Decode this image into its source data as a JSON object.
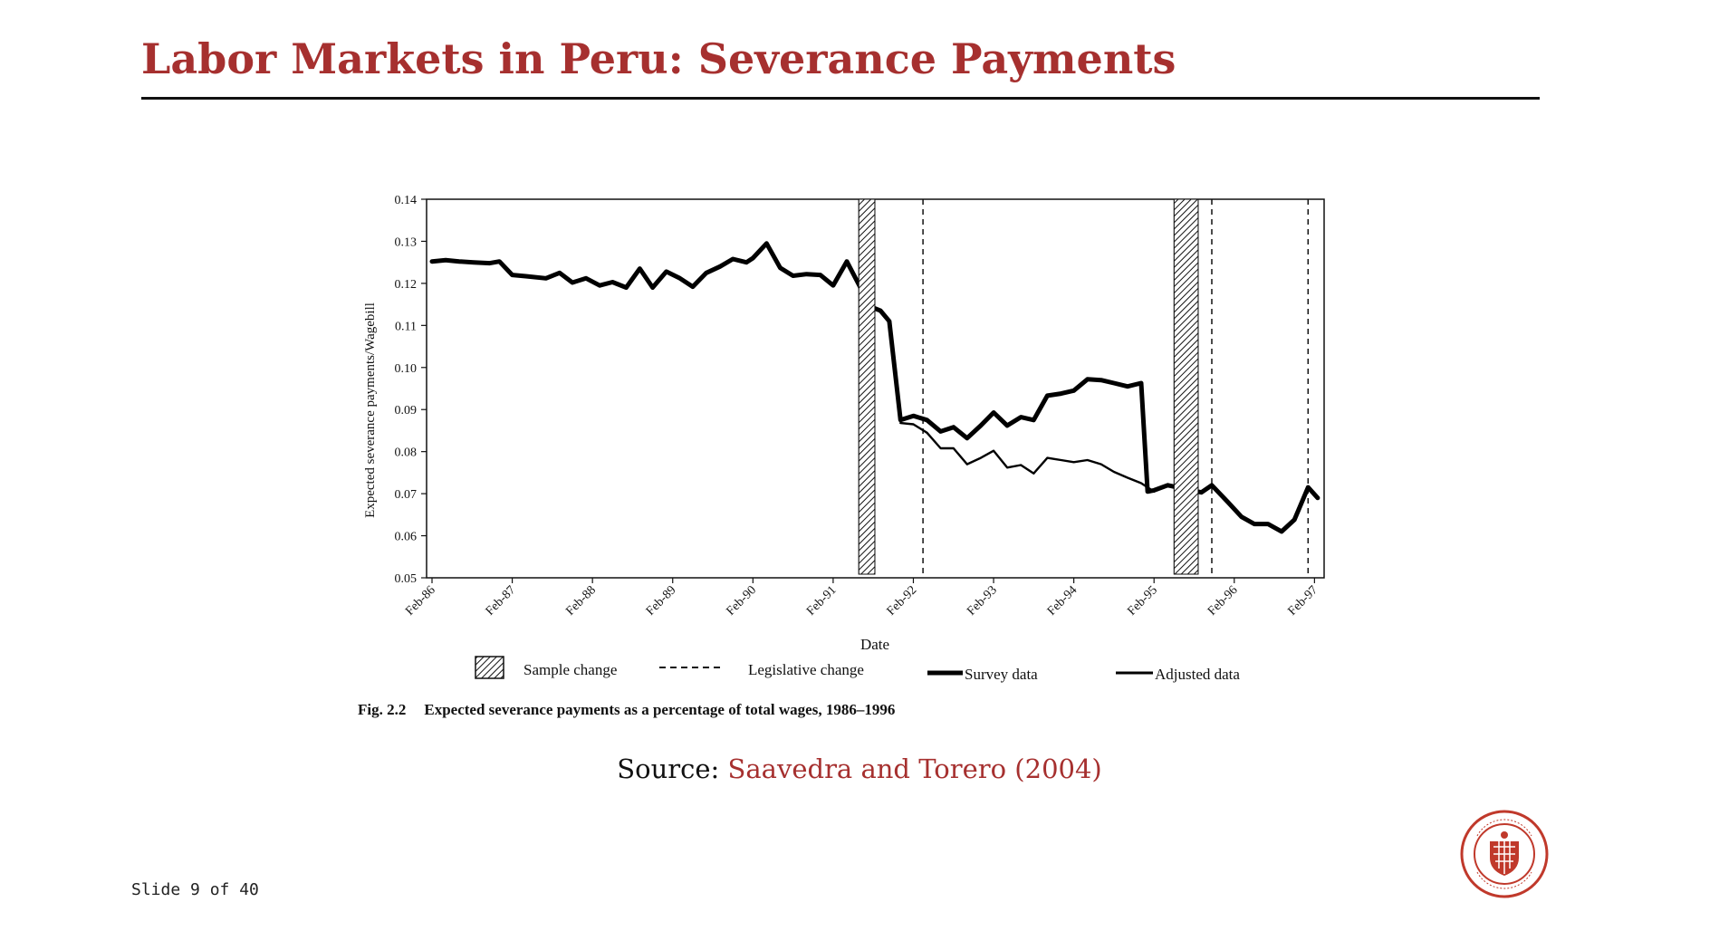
{
  "slide": {
    "title": "Labor Markets in Peru: Severance Payments",
    "source_label": "Source:",
    "source_ref": "Saavedra and Torero (2004)",
    "counter": "Slide 9 of 40",
    "accent_color": "#A6302F"
  },
  "figure": {
    "caption_number": "Fig. 2.2",
    "caption_text": "Expected severance payments as a percentage of total wages, 1986–1996"
  },
  "chart_data": {
    "type": "line",
    "title": "",
    "xlabel": "Date",
    "ylabel": "Expected severance payments/Wagebill",
    "ylim": [
      0.05,
      0.14
    ],
    "yticks": [
      "0.14",
      "0.13",
      "0.12",
      "0.11",
      "0.10",
      "0.09",
      "0.08",
      "0.07",
      "0.06",
      "0.05"
    ],
    "xlim": [
      1986.0,
      1997.2
    ],
    "xticks": [
      "Feb-86",
      "Feb-87",
      "Feb-88",
      "Feb-89",
      "Feb-90",
      "Feb-91",
      "Feb-92",
      "Feb-93",
      "Feb-94",
      "Feb-95",
      "Feb-96",
      "Feb-97"
    ],
    "grid": false,
    "legend_position": "bottom",
    "legend": [
      {
        "name": "Sample change",
        "style": "hatched"
      },
      {
        "name": "Legislative change",
        "style": "dashed"
      },
      {
        "name": "Survey data",
        "style": "thick"
      },
      {
        "name": "Adjusted data",
        "style": "thin"
      }
    ],
    "sample_change_periods": [
      [
        1991.4,
        1991.6
      ],
      [
        1995.33,
        1995.63
      ]
    ],
    "legislative_changes": [
      1992.2,
      1995.8,
      1997.0
    ],
    "series": [
      {
        "name": "Survey data",
        "style": "thick",
        "x": [
          1986.08,
          1986.25,
          1986.42,
          1986.6,
          1986.8,
          1986.92,
          1987.08,
          1987.25,
          1987.5,
          1987.67,
          1987.83,
          1988.0,
          1988.17,
          1988.33,
          1988.5,
          1988.67,
          1988.83,
          1989.0,
          1989.17,
          1989.33,
          1989.5,
          1989.67,
          1989.83,
          1990.0,
          1990.08,
          1990.25,
          1990.42,
          1990.58,
          1990.75,
          1990.92,
          1991.08,
          1991.25,
          1991.42,
          1991.58,
          1991.67,
          1991.78,
          1991.92,
          1992.08,
          1992.25,
          1992.42,
          1992.58,
          1992.75,
          1992.92,
          1993.08,
          1993.25,
          1993.42,
          1993.58,
          1993.75,
          1993.92,
          1994.08,
          1994.25,
          1994.42,
          1994.58,
          1994.75,
          1994.92,
          1995.0,
          1995.08,
          1995.25,
          1995.67,
          1995.8,
          1996.0,
          1996.17,
          1996.33,
          1996.5,
          1996.67,
          1996.83,
          1997.0,
          1997.12
        ],
        "y": [
          0.1252,
          0.1255,
          0.1252,
          0.125,
          0.1248,
          0.1252,
          0.122,
          0.1217,
          0.1212,
          0.1225,
          0.1202,
          0.1212,
          0.1195,
          0.1203,
          0.119,
          0.1235,
          0.119,
          0.1228,
          0.1212,
          0.1192,
          0.1225,
          0.124,
          0.1258,
          0.125,
          0.126,
          0.1295,
          0.1237,
          0.1218,
          0.1222,
          0.122,
          0.1195,
          0.1252,
          0.119,
          0.1142,
          0.1135,
          0.111,
          0.0875,
          0.0885,
          0.0875,
          0.0848,
          0.0858,
          0.0832,
          0.0862,
          0.0893,
          0.0862,
          0.0882,
          0.0875,
          0.0933,
          0.0938,
          0.0945,
          0.0972,
          0.097,
          0.0963,
          0.0955,
          0.0963,
          0.0705,
          0.0708,
          0.072,
          0.0703,
          0.072,
          0.068,
          0.0645,
          0.0628,
          0.0628,
          0.061,
          0.0638,
          0.0715,
          0.069
        ]
      },
      {
        "name": "Adjusted data",
        "style": "thin",
        "x": [
          1991.92,
          1992.08,
          1992.25,
          1992.42,
          1992.58,
          1992.75,
          1992.92,
          1993.08,
          1993.25,
          1993.42,
          1993.58,
          1993.75,
          1993.92,
          1994.08,
          1994.25,
          1994.42,
          1994.58,
          1994.75,
          1994.92,
          1995.08
        ],
        "y": [
          0.0868,
          0.0865,
          0.0845,
          0.0808,
          0.0808,
          0.077,
          0.0785,
          0.0802,
          0.0762,
          0.0768,
          0.0748,
          0.0785,
          0.078,
          0.0775,
          0.078,
          0.077,
          0.0752,
          0.0738,
          0.0725,
          0.0705
        ]
      }
    ]
  }
}
